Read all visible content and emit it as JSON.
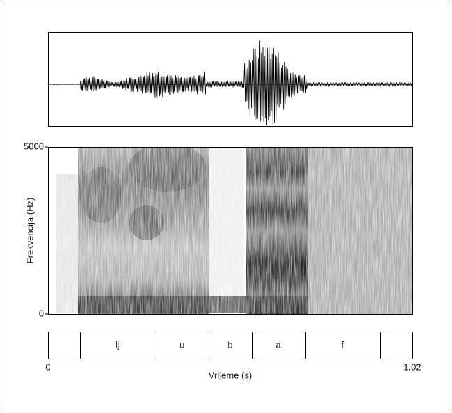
{
  "chart_data": {
    "type": "spectrogram",
    "xlabel": "Vrijeme (s)",
    "ylabel": "Frekvencija (Hz)",
    "xlim": [
      0,
      1.02
    ],
    "xticks": [
      0,
      1.02
    ],
    "ylim": [
      0,
      5000
    ],
    "yticks": [
      0,
      5000
    ],
    "tier": {
      "boundaries": [
        0.09,
        0.3,
        0.45,
        0.57,
        0.72,
        0.93
      ],
      "labels": [
        null,
        "lj",
        "u",
        "b",
        "a",
        "f",
        null
      ]
    }
  }
}
